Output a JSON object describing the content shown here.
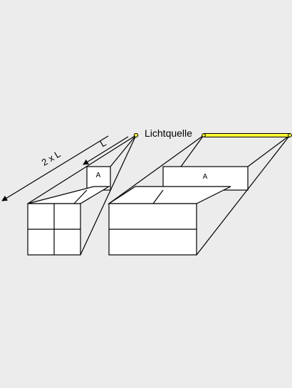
{
  "diagram": {
    "light_source_label": "Lichtquelle",
    "distance_short_label": "L",
    "distance_long_label": "2 x L",
    "small_aperture_label": "A",
    "large_aperture_label": "A",
    "colors": {
      "background": "#ececec",
      "line": "#000000",
      "face": "#ffffff",
      "light_bar": "#ffff33"
    }
  }
}
